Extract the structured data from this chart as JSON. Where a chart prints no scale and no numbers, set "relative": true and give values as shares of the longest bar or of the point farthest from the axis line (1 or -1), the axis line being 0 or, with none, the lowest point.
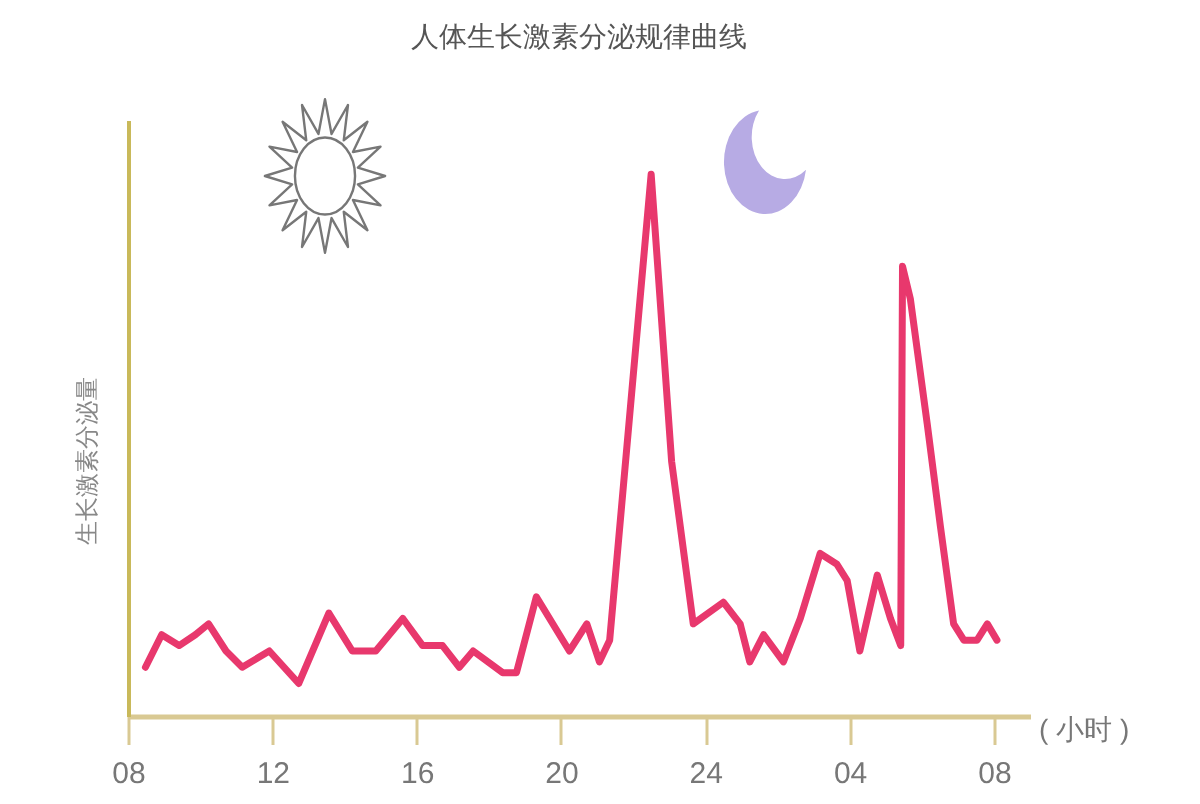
{
  "chart_data": {
    "type": "line",
    "title": "人体生长激素分泌规律曲线",
    "xlabel": "( 小时 )",
    "ylabel": "生长激素分泌量",
    "relative": true,
    "x": [
      "--01-01T08:29",
      "--01-01T08:56",
      "--01-01T09:25",
      "--01-01T09:52",
      "--01-01T10:14",
      "--01-01T10:43",
      "--01-01T11:10",
      "--01-01T11:55",
      "--01-01T12:44",
      "--01-01T13:34",
      "--01-01T14:13",
      "--01-01T14:52",
      "--01-01T15:37",
      "--01-01T16:10",
      "--01-01T16:43",
      "--01-01T17:11",
      "--01-01T17:34",
      "--01-01T18:23",
      "--01-01T18:46",
      "--01-01T19:19",
      "--01-01T20:14",
      "--01-01T20:43",
      "--01-01T21:04",
      "--01-01T21:21",
      "--01-01T22:30",
      "--01-01T23:04",
      "--01-01T23:40",
      "--01-02T00:30",
      "--01-02T00:58",
      "--01-02T01:14",
      "--01-02T01:37",
      "--01-02T02:10",
      "--01-02T02:38",
      "--01-02T03:11",
      "--01-02T03:39",
      "--01-02T03:56",
      "--01-02T04:17",
      "--01-02T04:46",
      "--01-02T05:08",
      "--01-02T05:25",
      "--01-02T05:28",
      "--01-02T05:41",
      "--01-02T06:09",
      "--01-02T06:31",
      "--01-02T06:53",
      "--01-02T07:10",
      "--01-02T07:32",
      "--01-02T07:49",
      "--01-02T08:05"
    ],
    "series": [
      {
        "color": "#e8386d",
        "values": [
          0.09,
          0.15,
          0.13,
          0.15,
          0.17,
          0.12,
          0.09,
          0.12,
          0.06,
          0.19,
          0.12,
          0.12,
          0.18,
          0.13,
          0.13,
          0.09,
          0.12,
          0.08,
          0.08,
          0.22,
          0.12,
          0.17,
          0.1,
          0.14,
          1,
          0.47,
          0.17,
          0.21,
          0.17,
          0.1,
          0.15,
          0.1,
          0.18,
          0.3,
          0.28,
          0.25,
          0.12,
          0.26,
          0.18,
          0.13,
          0.83,
          0.77,
          0.54,
          0.35,
          0.17,
          0.14,
          0.14,
          0.17,
          0.14
        ]
      }
    ],
    "xlim": [
      "--01-01T08:00",
      "--01-02T09:00"
    ],
    "xticks": [
      {
        "value": "--01-01T08:00",
        "label": "08"
      },
      {
        "value": "--01-01T12:00",
        "label": "12"
      },
      {
        "value": "--01-01T16:00",
        "label": "16"
      },
      {
        "value": "--01-01T20:00",
        "label": "20"
      },
      {
        "value": "--01-02T00:00",
        "label": "24"
      },
      {
        "value": "--01-02T04:00",
        "label": "04"
      },
      {
        "value": "--01-02T08:00",
        "label": "08"
      }
    ],
    "line_style": "solid"
  }
}
